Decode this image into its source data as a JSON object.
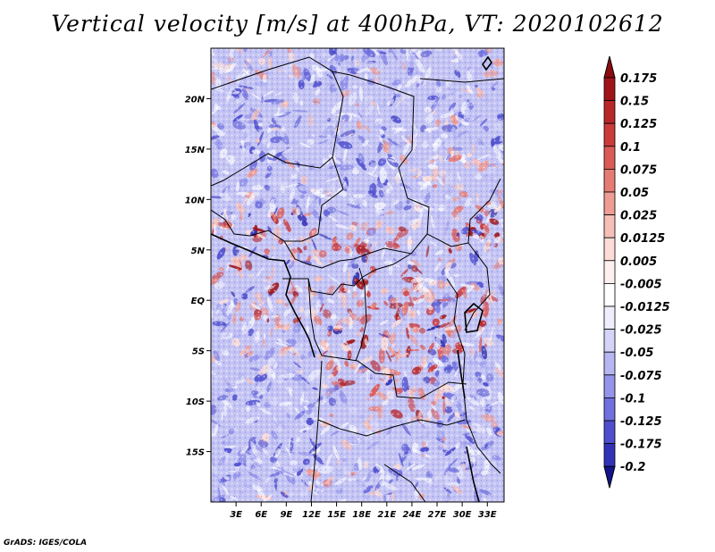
{
  "title": "Vertical velocity [m/s] at 400hPa, VT: 2020102612",
  "credit": "GrADS: IGES/COLA",
  "map": {
    "lon_range": [
      0,
      35
    ],
    "lat_range": [
      -20,
      25
    ],
    "lat_ticks": [
      {
        "value": 20,
        "label": "20N"
      },
      {
        "value": 15,
        "label": "15N"
      },
      {
        "value": 10,
        "label": "10N"
      },
      {
        "value": 5,
        "label": "5N"
      },
      {
        "value": 0,
        "label": "EQ"
      },
      {
        "value": -5,
        "label": "5S"
      },
      {
        "value": -10,
        "label": "10S"
      },
      {
        "value": -15,
        "label": "15S"
      }
    ],
    "lon_ticks": [
      {
        "value": 3,
        "label": "3E"
      },
      {
        "value": 6,
        "label": "6E"
      },
      {
        "value": 9,
        "label": "9E"
      },
      {
        "value": 12,
        "label": "12E"
      },
      {
        "value": 15,
        "label": "15E"
      },
      {
        "value": 18,
        "label": "18E"
      },
      {
        "value": 21,
        "label": "21E"
      },
      {
        "value": 24,
        "label": "24E"
      },
      {
        "value": 27,
        "label": "27E"
      },
      {
        "value": 30,
        "label": "30E"
      },
      {
        "value": 33,
        "label": "33E"
      }
    ]
  },
  "colorbar": {
    "levels": [
      {
        "label": "0.175",
        "color": "#a01418"
      },
      {
        "label": "0.15",
        "color": "#b8262a"
      },
      {
        "label": "0.125",
        "color": "#cc3a3a"
      },
      {
        "label": "0.1",
        "color": "#dc5a55"
      },
      {
        "label": "0.075",
        "color": "#e57c74"
      },
      {
        "label": "0.05",
        "color": "#ee9d95"
      },
      {
        "label": "0.025",
        "color": "#f6bfb8"
      },
      {
        "label": "0.0125",
        "color": "#fbdcd6"
      },
      {
        "label": "0.005",
        "color": "#fdf0ee"
      },
      {
        "label": "-0.005",
        "color": "#ffffff"
      },
      {
        "label": "-0.0125",
        "color": "#eeeefc"
      },
      {
        "label": "-0.025",
        "color": "#d4d4f8"
      },
      {
        "label": "-0.05",
        "color": "#b6b6f2"
      },
      {
        "label": "-0.075",
        "color": "#9494ea"
      },
      {
        "label": "-0.1",
        "color": "#7070de"
      },
      {
        "label": "-0.125",
        "color": "#4e4ece"
      },
      {
        "label": "-0.175",
        "color": "#3232b8"
      },
      {
        "label": "-0.2",
        "color": "#1e1e9e"
      }
    ],
    "top_color": "#8a0c10",
    "bottom_color": "#14148a"
  }
}
